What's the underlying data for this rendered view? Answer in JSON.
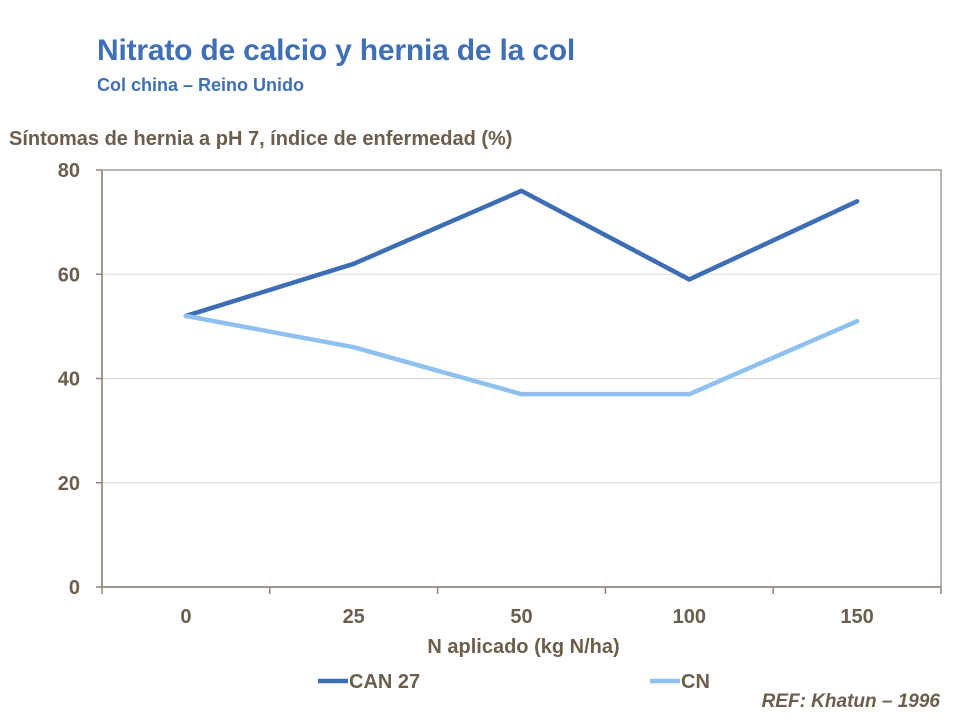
{
  "title": "Nitrato de calcio y hernia de la col",
  "subtitle": "Col china – Reino Unido",
  "reference": "REF: Khatun – 1996",
  "chart_data": {
    "type": "line",
    "title": "Nitrato de calcio y hernia de la col",
    "subtitle": "Col china – Reino Unido",
    "categories": [
      "0",
      "25",
      "50",
      "100",
      "150"
    ],
    "series": [
      {
        "name": "CAN 27",
        "color": "#3d6db5",
        "values": [
          52,
          62,
          76,
          59,
          74
        ]
      },
      {
        "name": "CN",
        "color": "#8ec0f0",
        "values": [
          52,
          46,
          37,
          37,
          51
        ]
      }
    ],
    "xlabel": "N aplicado (kg N/ha)",
    "ylabel": "Síntomas de hernia a pH 7, índice de enfermedad (%)",
    "ylim": [
      0,
      80
    ],
    "yticks": [
      0,
      20,
      40,
      60,
      80
    ],
    "grid": true,
    "legend_position": "bottom"
  }
}
